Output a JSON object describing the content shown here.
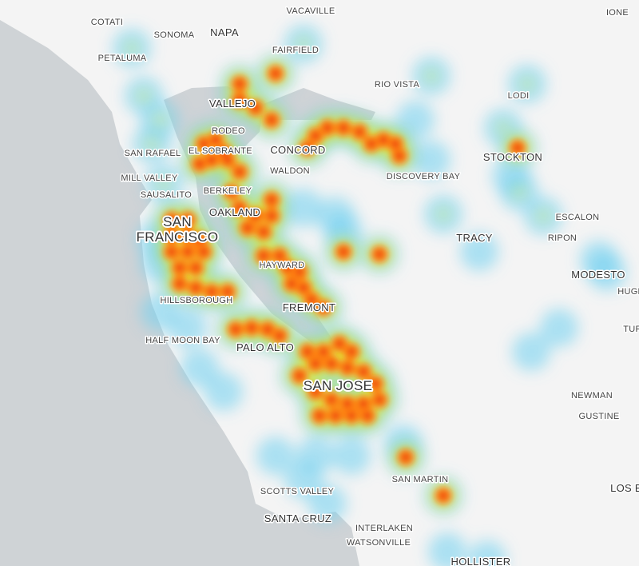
{
  "labels": [
    {
      "name": "COTATI"
    },
    {
      "name": "SONOMA"
    },
    {
      "name": "NAPA"
    },
    {
      "name": "VACAVILLE"
    },
    {
      "name": "IONE"
    },
    {
      "name": "PETALUMA"
    },
    {
      "name": "FAIRFIELD"
    },
    {
      "name": "RIO VISTA"
    },
    {
      "name": "LODI"
    },
    {
      "name": "VALLEJO"
    },
    {
      "name": "RODEO"
    },
    {
      "name": "SAN RAFAEL"
    },
    {
      "name": "EL SOBRANTE"
    },
    {
      "name": "CONCORD"
    },
    {
      "name": "STOCKTON"
    },
    {
      "name": "WALDON"
    },
    {
      "name": "DISCOVERY BAY"
    },
    {
      "name": "MILL VALLEY"
    },
    {
      "name": "SAUSALITO"
    },
    {
      "name": "BERKELEY"
    },
    {
      "name": "OAKLAND"
    },
    {
      "name": "SAN"
    },
    {
      "name": "FRANCISCO"
    },
    {
      "name": "ESCALON"
    },
    {
      "name": "TRACY"
    },
    {
      "name": "RIPON"
    },
    {
      "name": "HAYWARD"
    },
    {
      "name": "MODESTO"
    },
    {
      "name": "HUGH"
    },
    {
      "name": "HILLSBOROUGH"
    },
    {
      "name": "FREMONT"
    },
    {
      "name": "TUR"
    },
    {
      "name": "HALF MOON BAY"
    },
    {
      "name": "PALO ALTO"
    },
    {
      "name": "SAN JOSE"
    },
    {
      "name": "NEWMAN"
    },
    {
      "name": "GUSTINE"
    },
    {
      "name": "SAN MARTIN"
    },
    {
      "name": "LOS B"
    },
    {
      "name": "SCOTTS VALLEY"
    },
    {
      "name": "SANTA CRUZ"
    },
    {
      "name": "INTERLAKEN"
    },
    {
      "name": "WATSONVILLE"
    },
    {
      "name": "HOLLISTER"
    }
  ]
}
